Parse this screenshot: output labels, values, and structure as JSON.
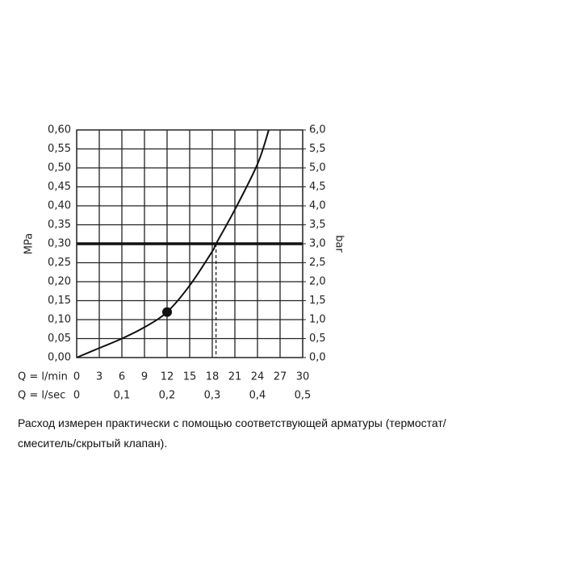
{
  "chart_data": {
    "type": "line",
    "x_label": "Q = l/min",
    "x2_label": "Q = l/sec",
    "ylabel": "MPa",
    "y2label": "bar",
    "x": [
      0,
      3,
      6,
      9,
      12,
      15,
      18,
      18.5,
      21,
      24,
      25.5
    ],
    "series": [
      {
        "color": "#111111",
        "values": [
          0,
          0.025,
          0.05,
          0.08,
          0.12,
          0.19,
          0.28,
          0.3,
          0.39,
          0.51,
          0.6
        ]
      }
    ],
    "xlim": [
      0,
      30
    ],
    "xticks": [
      0,
      3,
      6,
      9,
      12,
      15,
      18,
      21,
      24,
      27,
      30
    ],
    "x2lim": [
      0,
      0.5
    ],
    "x2ticks": [
      0,
      {
        "value": 0.1,
        "label": "0,1"
      },
      {
        "value": 0.2,
        "label": "0,2"
      },
      {
        "value": 0.3,
        "label": "0,3"
      },
      {
        "value": 0.4,
        "label": "0,4"
      },
      {
        "value": 0.5,
        "label": "0,5"
      }
    ],
    "ylim": [
      0,
      0.6
    ],
    "yticks": [
      {
        "value": 0,
        "label": "0,00"
      },
      {
        "value": 0.05,
        "label": "0,05"
      },
      {
        "value": 0.1,
        "label": "0,10"
      },
      {
        "value": 0.15,
        "label": "0,15"
      },
      {
        "value": 0.2,
        "label": "0,20"
      },
      {
        "value": 0.25,
        "label": "0,25"
      },
      {
        "value": 0.3,
        "label": "0,30"
      },
      {
        "value": 0.35,
        "label": "0,35"
      },
      {
        "value": 0.4,
        "label": "0,40"
      },
      {
        "value": 0.45,
        "label": "0,45"
      },
      {
        "value": 0.5,
        "label": "0,50"
      },
      {
        "value": 0.55,
        "label": "0,55"
      },
      {
        "value": 0.6,
        "label": "0,60"
      }
    ],
    "y2lim": [
      0,
      6
    ],
    "y2ticks": [
      {
        "value": 0,
        "label": "0,0"
      },
      {
        "value": 0.5,
        "label": "0,5"
      },
      {
        "value": 1,
        "label": "1,0"
      },
      {
        "value": 1.5,
        "label": "1,5"
      },
      {
        "value": 2,
        "label": "2,0"
      },
      {
        "value": 2.5,
        "label": "2,5"
      },
      {
        "value": 3,
        "label": "3,0"
      },
      {
        "value": 3.5,
        "label": "3,5"
      },
      {
        "value": 4,
        "label": "4,0"
      },
      {
        "value": 4.5,
        "label": "4,5"
      },
      {
        "value": 5,
        "label": "5,0"
      },
      {
        "value": 5.5,
        "label": "5,5"
      },
      {
        "value": 6,
        "label": "6,0"
      }
    ],
    "grid": true,
    "marker": {
      "x": 12,
      "y": 0.12
    },
    "hline": 0.3,
    "vline": {
      "x": 18.5,
      "y": 0.3
    }
  },
  "caption": [
    "Расход измерен практически с помощью соответствующей арматуры (термостат/",
    "смеситель/скрытый клапан)."
  ]
}
